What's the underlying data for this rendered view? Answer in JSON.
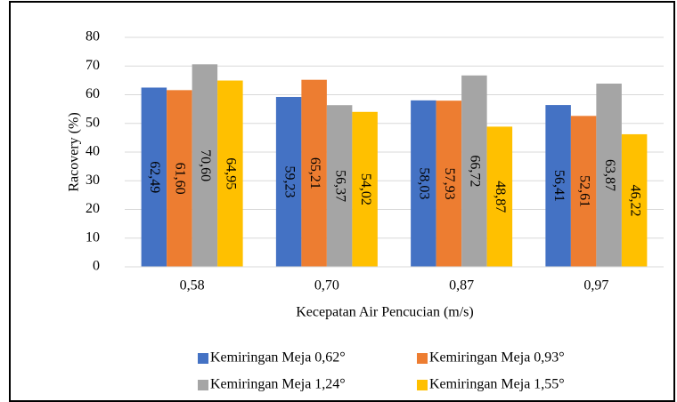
{
  "chart_data": {
    "type": "bar",
    "x_label": "Kecepatan Air Pencucian (m/s)",
    "y_label": "Racovery (%)",
    "categories": [
      "0,58",
      "0,70",
      "0,87",
      "0,97"
    ],
    "series": [
      {
        "name": "Kemiringan Meja 0,62°",
        "color": "#4472c4",
        "values": [
          62.49,
          59.23,
          58.03,
          56.41
        ],
        "value_labels": [
          "62,49",
          "59,23",
          "58,03",
          "56,41"
        ]
      },
      {
        "name": "Kemiringan Meja 0,93°",
        "color": "#ed7d31",
        "values": [
          61.6,
          65.21,
          57.93,
          52.61
        ],
        "value_labels": [
          "61,60",
          "65,21",
          "57,93",
          "52,61"
        ]
      },
      {
        "name": "Kemiringan Meja 1,24°",
        "color": "#a5a5a5",
        "values": [
          70.6,
          56.37,
          66.72,
          63.87
        ],
        "value_labels": [
          "70,60",
          "56,37",
          "66,72",
          "63,87"
        ]
      },
      {
        "name": "Kemiringan Meja 1,55°",
        "color": "#ffc000",
        "values": [
          64.95,
          54.02,
          48.87,
          46.22
        ],
        "value_labels": [
          "64,95",
          "54,02",
          "48,87",
          "46,22"
        ]
      }
    ],
    "ylim": [
      0,
      80
    ],
    "yticks": [
      0,
      10,
      20,
      30,
      40,
      50,
      60,
      70,
      80
    ],
    "grid": true
  }
}
